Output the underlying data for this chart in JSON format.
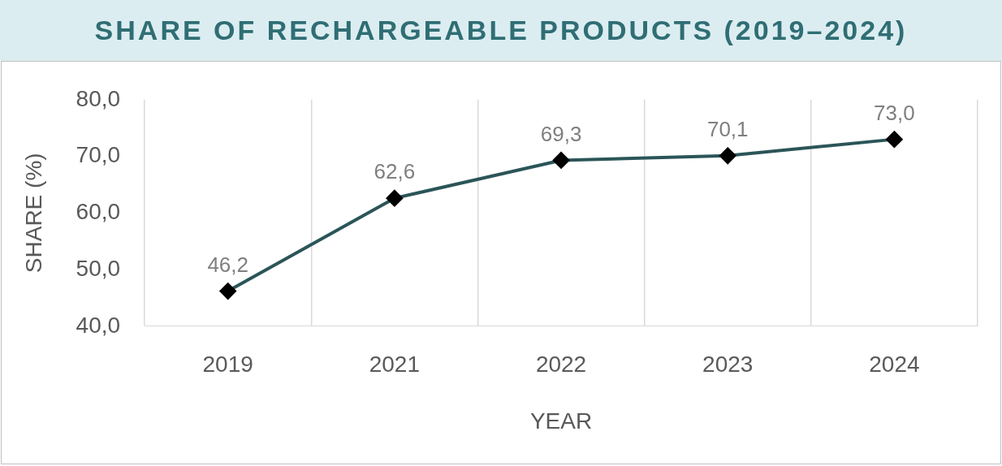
{
  "chart_data": {
    "type": "line",
    "title": "SHARE OF RECHARGEABLE PRODUCTS (2019–2024)",
    "xlabel": "YEAR",
    "ylabel": "SHARE (%)",
    "categories": [
      "2019",
      "2021",
      "2022",
      "2023",
      "2024"
    ],
    "series": [
      {
        "color": "#2b5558",
        "values": [
          46.2,
          62.6,
          69.3,
          70.1,
          73.0
        ],
        "value_labels": [
          "46,2",
          "62,6",
          "69,3",
          "70,1",
          "73,0"
        ]
      }
    ],
    "ylim": [
      40,
      80
    ],
    "yticks": [
      {
        "value": 40,
        "label": "40,0"
      },
      {
        "value": 50,
        "label": "50,0"
      },
      {
        "value": 60,
        "label": "60,0"
      },
      {
        "value": 70,
        "label": "70,0"
      },
      {
        "value": 80,
        "label": "80,0"
      }
    ],
    "grid": "x",
    "legend": false,
    "marker": "diamond",
    "line_style": "solid"
  }
}
